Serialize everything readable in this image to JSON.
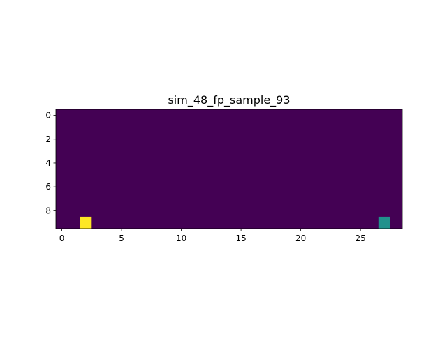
{
  "chart_data": {
    "type": "heatmap",
    "title": "sim_48_fp_sample_93",
    "xlabel": "",
    "ylabel": "",
    "shape": [
      10,
      29
    ],
    "xlim": [
      -0.5,
      28.5
    ],
    "ylim": [
      9.5,
      -0.5
    ],
    "x_ticks": [
      0,
      5,
      10,
      15,
      20,
      25
    ],
    "y_ticks": [
      0,
      2,
      4,
      6,
      8
    ],
    "background_value": 0,
    "background_color": "#440154",
    "cells": [
      {
        "row": 9,
        "col": 2,
        "value": 1.0,
        "color": "#fde725"
      },
      {
        "row": 9,
        "col": 27,
        "value": 0.5,
        "color": "#21918c"
      }
    ],
    "colormap": "viridis",
    "grid": false,
    "legend": "none"
  }
}
